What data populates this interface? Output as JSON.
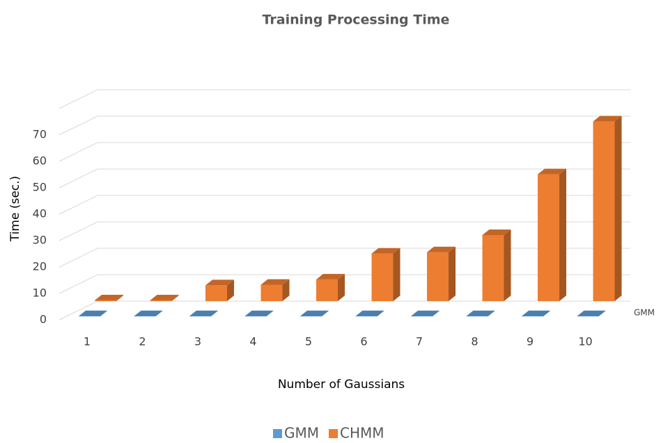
{
  "chart_data": {
    "type": "bar3d",
    "title": "Training Processing Time",
    "x_label": "Number of Gaussians",
    "y_label": "Time (sec.)",
    "categories": [
      "1",
      "2",
      "3",
      "4",
      "5",
      "6",
      "7",
      "8",
      "9",
      "10"
    ],
    "series": [
      {
        "name": "GMM",
        "color": "#5b9bd5",
        "values": [
          0.1,
          0.1,
          0.1,
          0.1,
          0.1,
          0.1,
          0.1,
          0.1,
          0.1,
          0.1
        ]
      },
      {
        "name": "CHMM",
        "color": "#ed7d31",
        "values": [
          0.3,
          0.3,
          6,
          6.2,
          8.2,
          18,
          18.5,
          25,
          48,
          68
        ]
      }
    ],
    "ylim": [
      0,
      80
    ],
    "yticks": [
      0,
      10,
      20,
      30,
      40,
      50,
      60,
      70
    ],
    "grid": true,
    "legend": "bottom"
  }
}
